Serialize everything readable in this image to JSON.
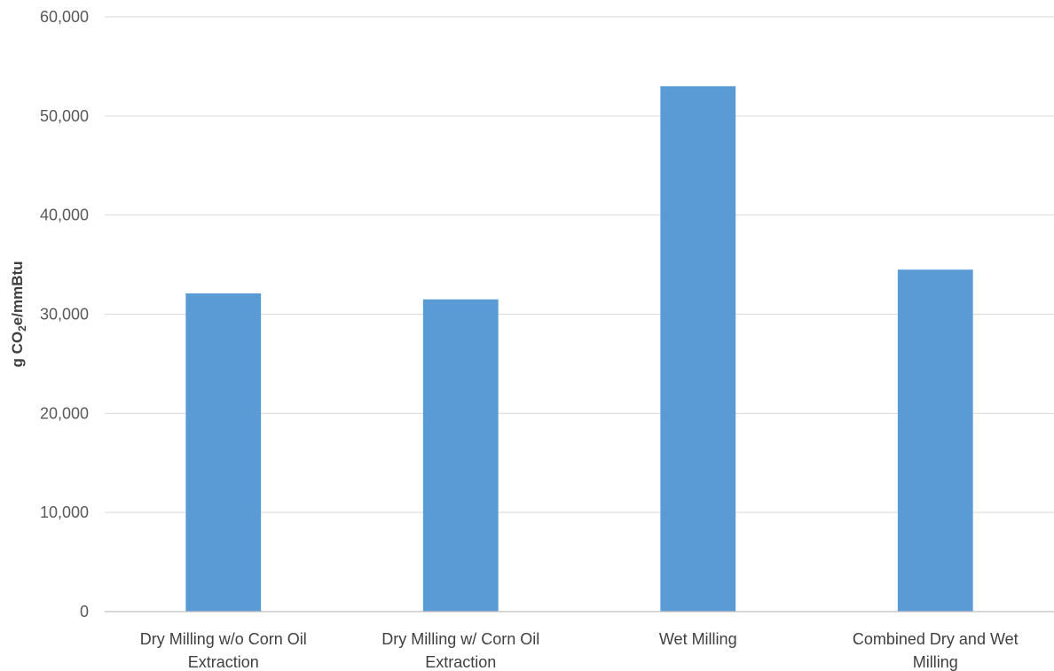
{
  "chart_data": {
    "type": "bar",
    "title": "",
    "xlabel": "",
    "ylabel": {
      "prefix": "g CO",
      "subscript": "2",
      "suffix": "e/mmBtu"
    },
    "ylim": [
      0,
      60000
    ],
    "yticks": [
      0,
      10000,
      20000,
      30000,
      40000,
      50000,
      60000
    ],
    "ytick_labels": [
      "0",
      "10,000",
      "20,000",
      "30,000",
      "40,000",
      "50,000",
      "60,000"
    ],
    "grid": true,
    "legend": "none",
    "bar_color": "#5b9bd5",
    "categories": [
      [
        "Dry Milling w/o Corn Oil",
        "Extraction"
      ],
      [
        "Dry Milling w/ Corn Oil",
        "Extraction"
      ],
      [
        "Wet Milling"
      ],
      [
        "Combined Dry and Wet",
        "Milling"
      ]
    ],
    "values": [
      32100,
      31500,
      53000,
      34500
    ]
  }
}
